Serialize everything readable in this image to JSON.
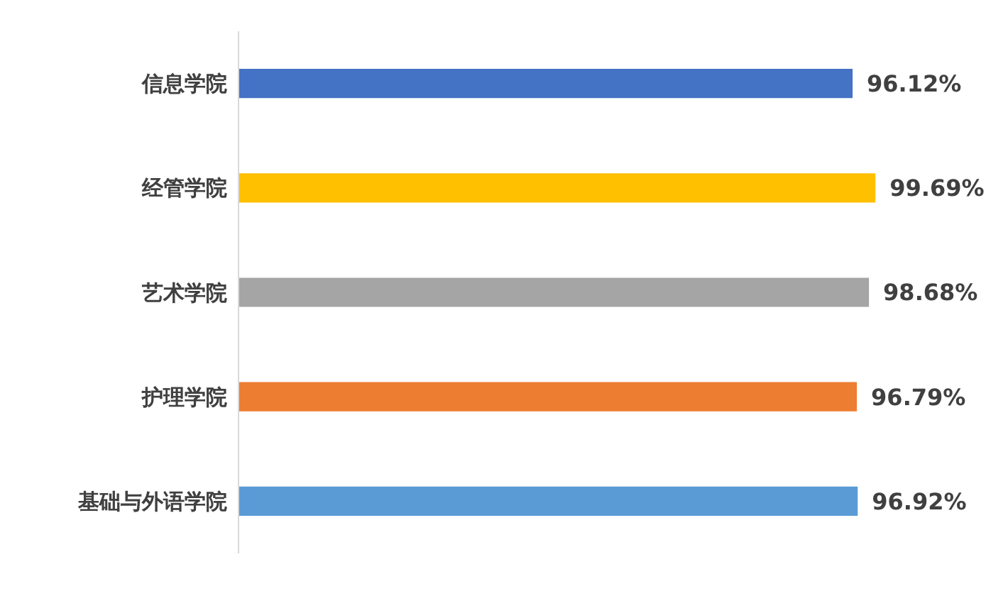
{
  "chart_data": {
    "type": "bar",
    "orientation": "horizontal",
    "categories": [
      "信息学院",
      "经管学院",
      "艺术学院",
      "护理学院",
      "基础与外语学院"
    ],
    "values": [
      96.12,
      99.69,
      98.68,
      96.79,
      96.92
    ],
    "value_labels": [
      "96.12%",
      "99.69%",
      "98.68%",
      "96.79%",
      "96.92%"
    ],
    "colors": [
      "#4472c4",
      "#ffc000",
      "#a5a5a5",
      "#ed7d31",
      "#5b9bd5"
    ],
    "xlim": [
      0,
      100
    ],
    "tick_labels": "y"
  }
}
